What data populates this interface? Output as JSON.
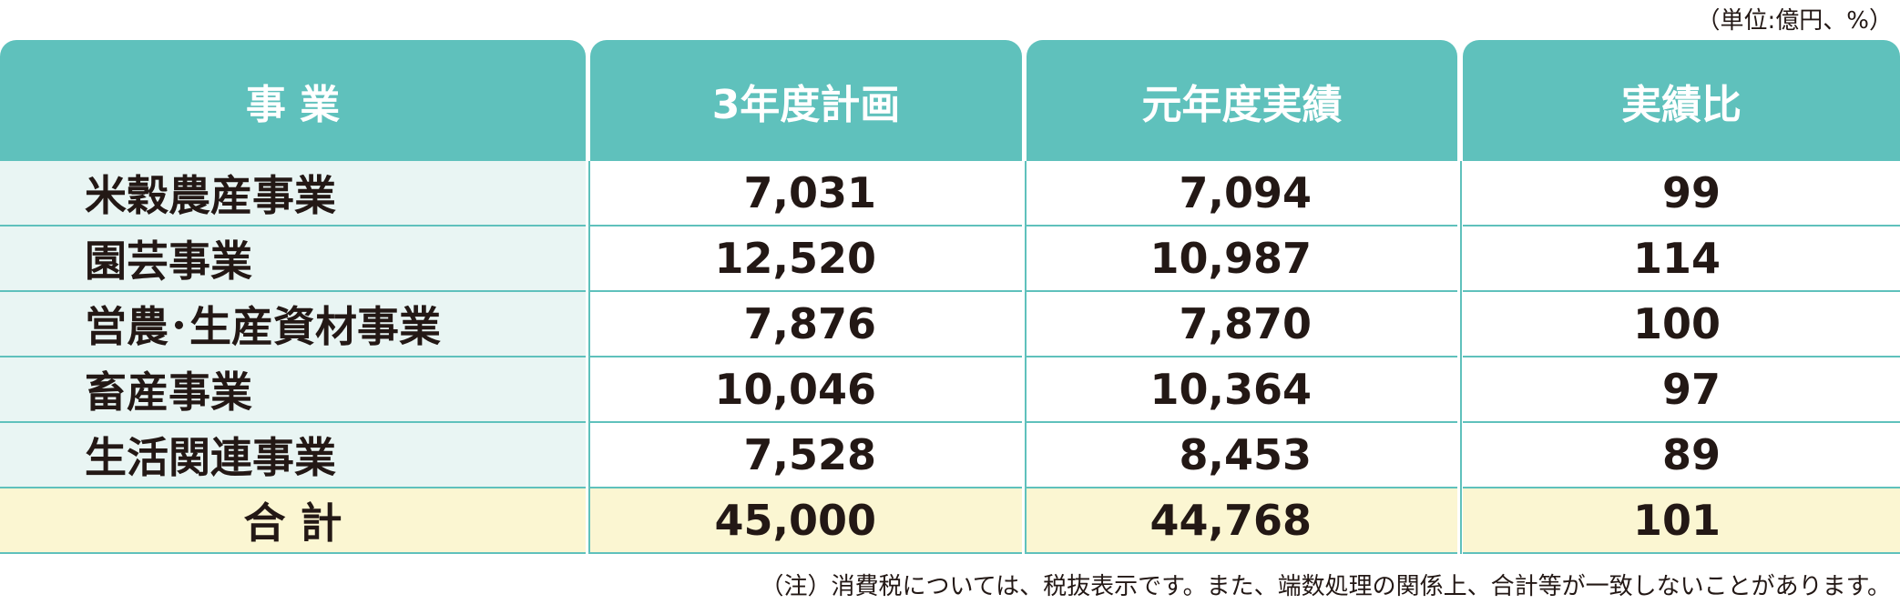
{
  "unit_note": "（単位:億円、%）",
  "table": {
    "header": [
      "事 業",
      "3年度計画",
      "元年度実績",
      "実績比"
    ],
    "rows": [
      [
        "米穀農産事業",
        "7,031",
        "7,094",
        "99"
      ],
      [
        "園芸事業",
        "12,520",
        "10,987",
        "114"
      ],
      [
        "営農･生産資材事業",
        "7,876",
        "7,870",
        "100"
      ],
      [
        "畜産事業",
        "10,046",
        "10,364",
        "97"
      ],
      [
        "生活関連事業",
        "7,528",
        "8,453",
        "89"
      ]
    ],
    "total": [
      "合 計",
      "45,000",
      "44,768",
      "101"
    ]
  },
  "footnote": "（注）消費税については、税抜表示です。また、端数処理の関係上、合計等が一致しないことがあります。"
}
